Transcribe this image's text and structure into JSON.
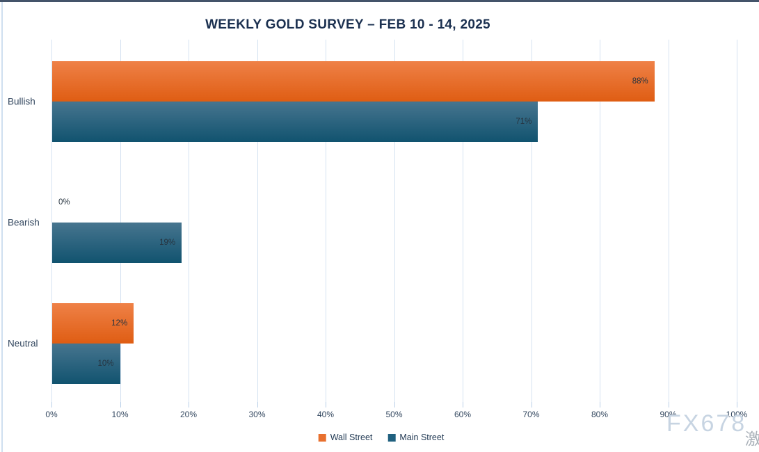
{
  "title": "WEEKLY GOLD SURVEY – FEB 10 - 14, 2025",
  "chart_data": {
    "type": "bar",
    "orientation": "horizontal",
    "title": "WEEKLY GOLD SURVEY – FEB 10 - 14, 2025",
    "categories": [
      "Bullish",
      "Bearish",
      "Neutral"
    ],
    "series": [
      {
        "name": "Wall Street",
        "legend_color": "#e8702e",
        "values": [
          88,
          0,
          12
        ]
      },
      {
        "name": "Main Street",
        "legend_color": "#20607f",
        "values": [
          71,
          19,
          10
        ]
      }
    ],
    "value_suffix": "%",
    "x_ticks": [
      "0%",
      "10%",
      "20%",
      "30%",
      "40%",
      "50%",
      "60%",
      "70%",
      "80%",
      "90%",
      "100%"
    ],
    "xlim": [
      0,
      100
    ],
    "grid": true,
    "legend_position": "bottom",
    "colors": {
      "wall_street_gradient_top": "#ef8147",
      "wall_street_gradient_bottom": "#df5d13",
      "main_street_gradient_top": "#47758f",
      "main_street_gradient_bottom": "#11536f",
      "gridline": "#d5e2f1",
      "title_text": "#1b3050",
      "axis_text": "#33475f",
      "data_label_text": "#26333f",
      "top_border": "#44546a"
    }
  },
  "watermark": {
    "text": "FX678",
    "cjk": "激"
  }
}
